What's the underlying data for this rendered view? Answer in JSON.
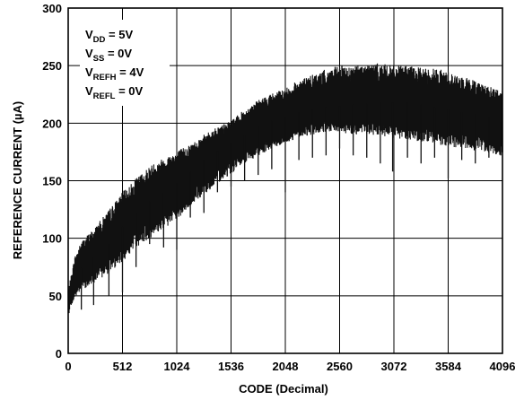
{
  "chart_data": {
    "type": "line",
    "title": "",
    "xlabel": "CODE (Decimal)",
    "ylabel": "REFERENCE CURRENT (µA)",
    "xlim": [
      0,
      4096
    ],
    "ylim": [
      0,
      300
    ],
    "x_ticks": [
      0,
      512,
      1024,
      1536,
      2048,
      2560,
      3072,
      3584,
      4096
    ],
    "y_ticks": [
      0,
      50,
      100,
      150,
      200,
      250,
      300
    ],
    "grid": true,
    "legend": "none",
    "conditions": [
      {
        "main": "V",
        "sub": "DD",
        "rest": " = 5V"
      },
      {
        "main": "V",
        "sub": "SS",
        "rest": " = 0V"
      },
      {
        "main": "V",
        "sub": "REFH",
        "rest": " = 4V"
      },
      {
        "main": "V",
        "sub": "REFL",
        "rest": " = 0V"
      }
    ],
    "series": [
      {
        "x": [
          0,
          64,
          128,
          256,
          384,
          512,
          640,
          768,
          896,
          1024,
          1152,
          1280,
          1408,
          1536,
          1664,
          1792,
          1920,
          2048,
          2176,
          2304,
          2432,
          2560,
          2688,
          2816,
          2944,
          3072,
          3200,
          3328,
          3456,
          3584,
          3712,
          3840,
          3968,
          4096
        ],
        "upper": [
          55,
          85,
          98,
          110,
          125,
          140,
          152,
          163,
          170,
          176,
          182,
          190,
          197,
          202,
          212,
          220,
          226,
          230,
          238,
          242,
          247,
          250,
          250,
          252,
          252,
          250,
          250,
          248,
          248,
          245,
          240,
          238,
          232,
          228
        ],
        "center": [
          45,
          65,
          75,
          85,
          95,
          110,
          122,
          132,
          140,
          148,
          158,
          168,
          176,
          182,
          190,
          198,
          202,
          205,
          210,
          212,
          214,
          215,
          216,
          217,
          218,
          218,
          218,
          216,
          214,
          212,
          210,
          208,
          205,
          200
        ],
        "lower": [
          36,
          48,
          55,
          62,
          70,
          80,
          92,
          100,
          108,
          115,
          128,
          138,
          148,
          156,
          165,
          172,
          178,
          182,
          188,
          190,
          192,
          192,
          190,
          190,
          188,
          186,
          186,
          184,
          182,
          180,
          178,
          176,
          174,
          172
        ],
        "color": "#111111"
      }
    ],
    "dips": [
      {
        "x": 8,
        "y": 35
      },
      {
        "x": 124,
        "y": 38
      },
      {
        "x": 240,
        "y": 42
      },
      {
        "x": 384,
        "y": 50
      },
      {
        "x": 512,
        "y": 53
      },
      {
        "x": 640,
        "y": 75
      },
      {
        "x": 768,
        "y": 95
      },
      {
        "x": 900,
        "y": 92
      },
      {
        "x": 1024,
        "y": 90
      },
      {
        "x": 1152,
        "y": 118
      },
      {
        "x": 1280,
        "y": 122
      },
      {
        "x": 1408,
        "y": 140
      },
      {
        "x": 1536,
        "y": 145
      },
      {
        "x": 1664,
        "y": 150
      },
      {
        "x": 1792,
        "y": 155
      },
      {
        "x": 1920,
        "y": 160
      },
      {
        "x": 2048,
        "y": 140
      },
      {
        "x": 2176,
        "y": 168
      },
      {
        "x": 2304,
        "y": 170
      },
      {
        "x": 2432,
        "y": 172
      },
      {
        "x": 2560,
        "y": 178
      },
      {
        "x": 2688,
        "y": 172
      },
      {
        "x": 2816,
        "y": 170
      },
      {
        "x": 2944,
        "y": 165
      },
      {
        "x": 3060,
        "y": 158
      },
      {
        "x": 3200,
        "y": 170
      },
      {
        "x": 3328,
        "y": 165
      },
      {
        "x": 3456,
        "y": 170
      },
      {
        "x": 3584,
        "y": 152
      },
      {
        "x": 3712,
        "y": 168
      },
      {
        "x": 3840,
        "y": 165
      },
      {
        "x": 3968,
        "y": 170
      },
      {
        "x": 4080,
        "y": 172
      }
    ]
  }
}
